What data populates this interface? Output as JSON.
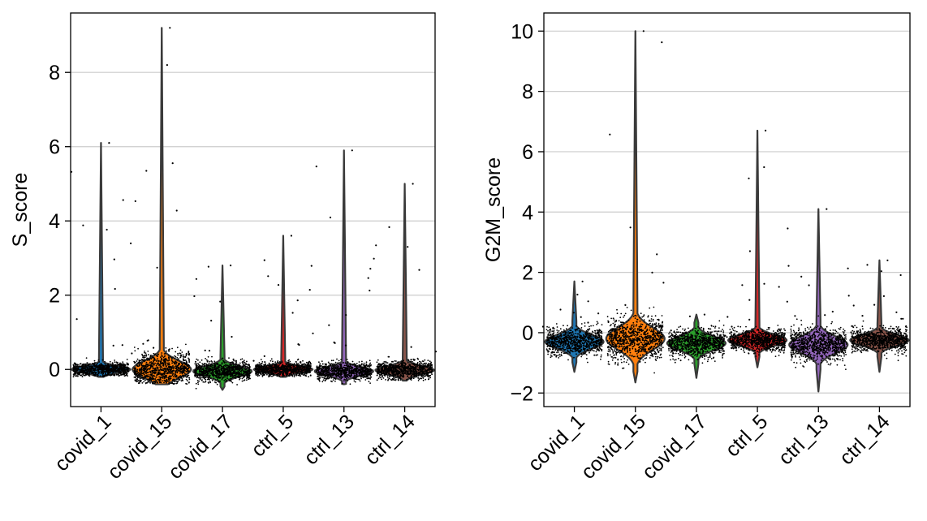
{
  "chart_data": [
    {
      "type": "violin",
      "ylabel": "S_score",
      "ylim": [
        -1.0,
        9.6
      ],
      "yticks": [
        0,
        2,
        4,
        6,
        8
      ],
      "categories": [
        "covid_1",
        "covid_15",
        "covid_17",
        "ctrl_5",
        "ctrl_13",
        "ctrl_14"
      ],
      "colors": [
        "#1f77b4",
        "#ff7f0e",
        "#2ca02c",
        "#d62728",
        "#9467bd",
        "#8c564b"
      ],
      "grid": "horizontal",
      "violins": [
        {
          "category": "covid_1",
          "min": -0.2,
          "max": 6.1,
          "median": 0.0,
          "q1": -0.08,
          "q3": 0.08,
          "spread": 0.2
        },
        {
          "category": "covid_15",
          "min": -0.4,
          "max": 9.2,
          "median": 0.0,
          "q1": -0.15,
          "q3": 0.25,
          "spread": 0.5
        },
        {
          "category": "covid_17",
          "min": -0.55,
          "max": 2.8,
          "median": -0.05,
          "q1": -0.15,
          "q3": 0.05,
          "spread": 0.3
        },
        {
          "category": "ctrl_5",
          "min": -0.2,
          "max": 3.6,
          "median": 0.0,
          "q1": -0.08,
          "q3": 0.08,
          "spread": 0.2
        },
        {
          "category": "ctrl_13",
          "min": -0.4,
          "max": 5.9,
          "median": -0.05,
          "q1": -0.12,
          "q3": 0.05,
          "spread": 0.25
        },
        {
          "category": "ctrl_14",
          "min": -0.3,
          "max": 5.0,
          "median": -0.02,
          "q1": -0.1,
          "q3": 0.06,
          "spread": 0.25
        }
      ]
    },
    {
      "type": "violin",
      "ylabel": "G2M_score",
      "ylim": [
        -2.45,
        10.6
      ],
      "yticks": [
        -2,
        0,
        2,
        4,
        6,
        8,
        10
      ],
      "categories": [
        "covid_1",
        "covid_15",
        "covid_17",
        "ctrl_5",
        "ctrl_13",
        "ctrl_14"
      ],
      "colors": [
        "#1f77b4",
        "#ff7f0e",
        "#2ca02c",
        "#d62728",
        "#9467bd",
        "#8c564b"
      ],
      "grid": "horizontal",
      "violins": [
        {
          "category": "covid_1",
          "min": -1.3,
          "max": 1.7,
          "median": -0.3,
          "q1": -0.55,
          "q3": -0.1,
          "spread": 0.5
        },
        {
          "category": "covid_15",
          "min": -1.65,
          "max": 10.0,
          "median": -0.2,
          "q1": -0.6,
          "q3": 0.1,
          "spread": 0.8
        },
        {
          "category": "covid_17",
          "min": -1.5,
          "max": 0.6,
          "median": -0.35,
          "q1": -0.6,
          "q3": -0.15,
          "spread": 0.5
        },
        {
          "category": "ctrl_5",
          "min": -1.15,
          "max": 6.7,
          "median": -0.25,
          "q1": -0.45,
          "q3": -0.1,
          "spread": 0.4
        },
        {
          "category": "ctrl_13",
          "min": -1.95,
          "max": 4.1,
          "median": -0.4,
          "q1": -0.75,
          "q3": -0.15,
          "spread": 0.6
        },
        {
          "category": "ctrl_14",
          "min": -1.3,
          "max": 2.4,
          "median": -0.25,
          "q1": -0.45,
          "q3": -0.1,
          "spread": 0.4
        }
      ]
    }
  ]
}
